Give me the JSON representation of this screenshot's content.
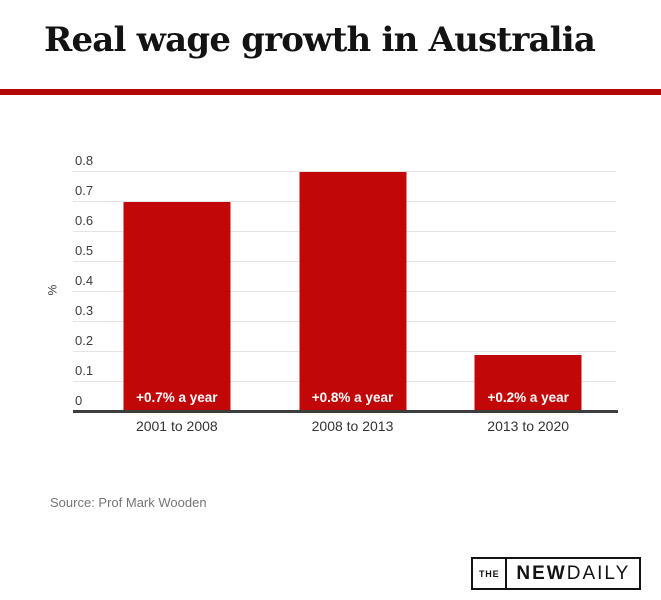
{
  "header": {
    "title": "Real wage growth in Australia"
  },
  "chart_data": {
    "type": "bar",
    "title": "Real wage growth in Australia",
    "categories": [
      "2001 to 2008",
      "2008 to 2013",
      "2013 to 2020"
    ],
    "values": [
      0.7,
      0.8,
      0.19
    ],
    "bar_labels": [
      "+0.7% a year",
      "+0.8% a year",
      "+0.2% a year"
    ],
    "xlabel": "",
    "ylabel": "%",
    "ylim": [
      0,
      0.8
    ],
    "yticks": [
      0,
      0.1,
      0.2,
      0.3,
      0.4,
      0.5,
      0.6,
      0.7,
      0.8
    ],
    "grid": true,
    "legend_position": "none",
    "bar_color": "#c10707"
  },
  "footer": {
    "source": "Source: Prof Mark Wooden"
  },
  "logo": {
    "the": "THE",
    "new": "NEW",
    "daily": "DAILY"
  },
  "colors": {
    "accent_rule_red": "#b30808",
    "bar_red": "#c10707",
    "gridline": "#e4e4e4",
    "axis": "#3d3d3d",
    "title_text": "#131313",
    "source_text": "#757575"
  }
}
